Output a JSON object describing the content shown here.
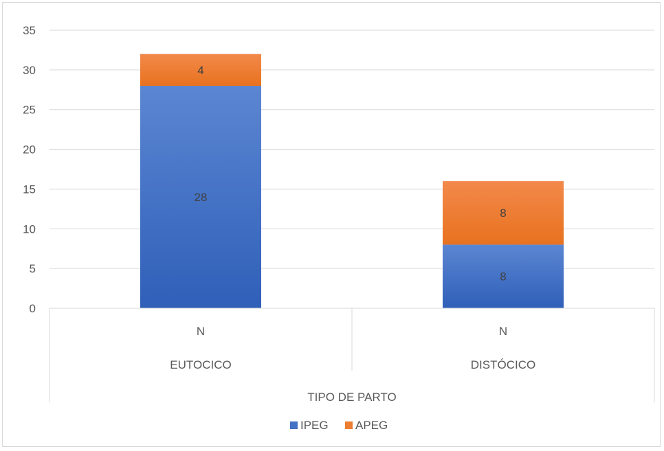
{
  "chart_data": {
    "type": "bar",
    "stacked": true,
    "categories": [
      "EUTOCICO",
      "DISTÓCICO"
    ],
    "category_sublabel": "N",
    "group_label": "TIPO DE PARTO",
    "series": [
      {
        "name": "IPEG",
        "values": [
          28,
          8
        ],
        "color": "#4472c4"
      },
      {
        "name": "APEG",
        "values": [
          4,
          8
        ],
        "color": "#ed7d31"
      }
    ],
    "ylim": [
      0,
      35
    ],
    "yticks": [
      0,
      5,
      10,
      15,
      20,
      25,
      30,
      35
    ],
    "grid": true,
    "legend_position": "bottom",
    "data_labels": true
  }
}
